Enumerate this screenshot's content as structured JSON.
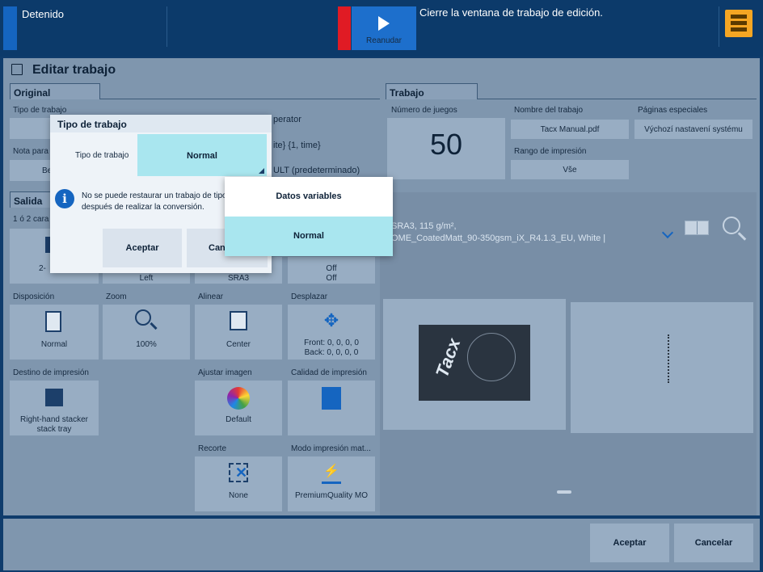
{
  "topbar": {
    "state": "Detenido",
    "resume_label": "Reanudar",
    "message": "Cierre la ventana de trabajo de edición."
  },
  "header": {
    "title": "Editar trabajo"
  },
  "original": {
    "tab": "Original",
    "tipo_label": "Tipo de trabajo",
    "nota_label": "Nota para",
    "nota_value_partial": "Be",
    "operator_partial": "perator",
    "time_partial": "ite} {1, time}",
    "default_partial": "ULT (predeterminado)"
  },
  "trabajo": {
    "tab": "Trabajo",
    "sets_label": "Número de juegos",
    "sets_value": "50",
    "name_label": "Nombre del trabajo",
    "name_value": "Tacx Manual.pdf",
    "special_label": "Páginas especiales",
    "special_value": "Výchozí nastavení systému",
    "range_label": "Rango de impresión",
    "range_value": "Vše"
  },
  "salida": {
    "tab": "Salida",
    "sides_label_partial": "1 ó 2 cara",
    "sides_value_partial": "2-",
    "left_value": "Left",
    "sra3_value": "SRA3",
    "off1": "Off",
    "off2": "Off",
    "disposicion_label": "Disposición",
    "disposicion_value": "Normal",
    "zoom_label": "Zoom",
    "zoom_value": "100%",
    "alinear_label": "Alinear",
    "alinear_value": "Center",
    "desplazar_label": "Desplazar",
    "desplazar_front": "Front: 0, 0, 0, 0",
    "desplazar_back": "Back: 0, 0, 0, 0",
    "destino_label": "Destino de impresión",
    "destino_value1": "Right-hand stacker",
    "destino_value2": "stack tray",
    "ajustar_label": "Ajustar imagen",
    "ajustar_value": "Default",
    "calidad_label": "Calidad de impresión",
    "recorte_label": "Recorte",
    "recorte_value": "None",
    "modo_label": "Modo impresión mat...",
    "modo_value": "PremiumQuality MO"
  },
  "preview": {
    "media_line1": "SRA3, 115 g/m²,",
    "media_line2": "OME_CoatedMatt_90-350gsm_iX_R4.1.3_EU, White |",
    "thumb_brand": "Tacx"
  },
  "footer": {
    "accept": "Aceptar",
    "cancel": "Cancelar"
  },
  "dialog": {
    "title": "Tipo de trabajo",
    "field_label": "Tipo de trabajo",
    "field_value": "Normal",
    "info_line1": "No se puede restaurar un trabajo de tipo",
    "info_line2": "después de realizar la conversión.",
    "accept": "Aceptar",
    "cancel_partial": "Can"
  },
  "dropdown": {
    "options": [
      "Datos variables",
      "Normal"
    ],
    "selected": "Normal"
  },
  "colors": {
    "accent": "#1565c0",
    "alert": "#e01b24",
    "selection": "#a9e6ef",
    "queue": "#f5a623"
  }
}
